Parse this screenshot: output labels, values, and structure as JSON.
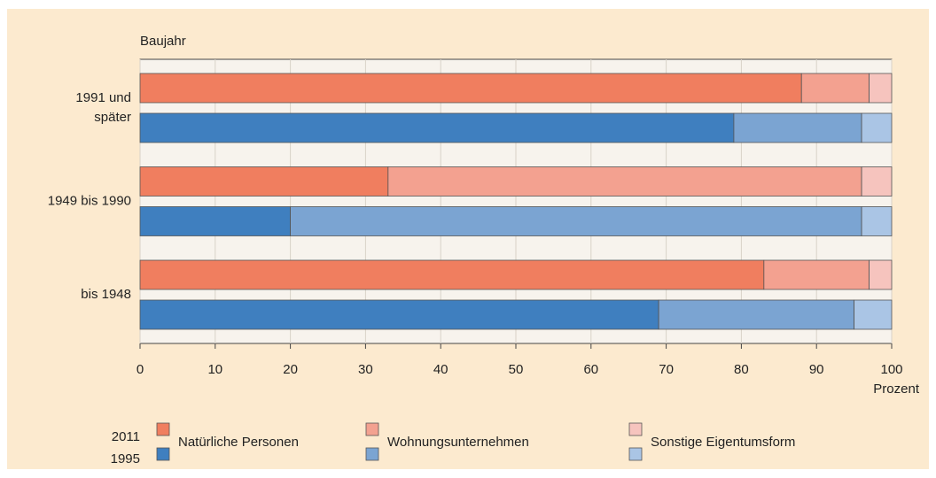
{
  "chart_data": {
    "type": "stacked-bar-horizontal",
    "ylabel": "Baujahr",
    "xlabel": "Prozent",
    "categories": [
      [
        "1991 und",
        "später"
      ],
      [
        "1949 bis 1990"
      ],
      [
        "bis 1948"
      ]
    ],
    "years": [
      "2011",
      "1995"
    ],
    "series": [
      {
        "name": "Natürliche Personen",
        "colors": [
          "#f07e5f",
          "#3f7fbf"
        ],
        "values": [
          [
            88,
            33,
            83
          ],
          [
            79,
            20,
            69
          ]
        ]
      },
      {
        "name": "Wohnungsunternehmen",
        "colors": [
          "#f3a190",
          "#7ba4d2"
        ],
        "values": [
          [
            9,
            63,
            14
          ],
          [
            17,
            76,
            26
          ]
        ]
      },
      {
        "name": "Sonstige Eigentumsform",
        "colors": [
          "#f6c4be",
          "#aac5e5"
        ],
        "values": [
          [
            3,
            4,
            3
          ],
          [
            4,
            4,
            5
          ]
        ]
      }
    ],
    "xlim": [
      0,
      100
    ],
    "xticks": [
      0,
      10,
      20,
      30,
      40,
      50,
      60,
      70,
      80,
      90,
      100
    ],
    "grid": true
  }
}
